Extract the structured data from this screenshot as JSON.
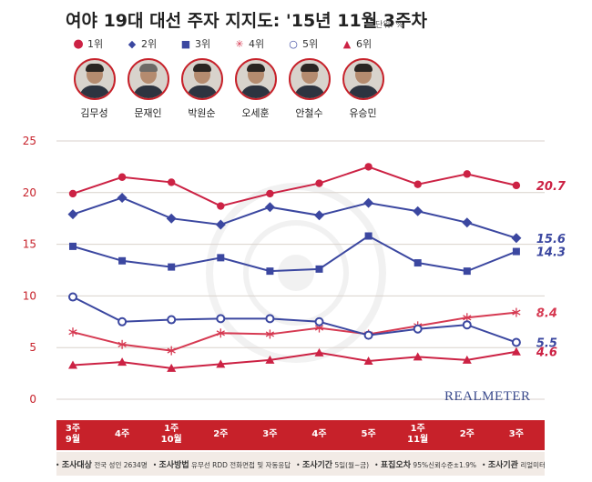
{
  "title": "여야 19대 대선 주자 지지도: '15년 11월 3주차",
  "unit": "단위: %",
  "brand": "REALMETER",
  "legend": [
    {
      "rank": "1위",
      "marker": "circle",
      "color": "#cc2244"
    },
    {
      "rank": "2위",
      "marker": "diamond",
      "color": "#3b47a0"
    },
    {
      "rank": "3위",
      "marker": "square",
      "color": "#3b47a0"
    },
    {
      "rank": "4위",
      "marker": "asterisk",
      "color": "#d63a52"
    },
    {
      "rank": "5위",
      "marker": "open-circle",
      "color": "#3b47a0"
    },
    {
      "rank": "6위",
      "marker": "triangle",
      "color": "#cc2244"
    }
  ],
  "candidates": [
    {
      "name": "김무성"
    },
    {
      "name": "문재인"
    },
    {
      "name": "박원순"
    },
    {
      "name": "오세훈"
    },
    {
      "name": "안철수"
    },
    {
      "name": "유승민"
    }
  ],
  "x_labels": [
    {
      "week": "3주",
      "month": "9월"
    },
    {
      "week": "4주",
      "month": ""
    },
    {
      "week": "1주",
      "month": "10월"
    },
    {
      "week": "2주",
      "month": ""
    },
    {
      "week": "3주",
      "month": ""
    },
    {
      "week": "4주",
      "month": ""
    },
    {
      "week": "5주",
      "month": ""
    },
    {
      "week": "1주",
      "month": "11월"
    },
    {
      "week": "2주",
      "month": ""
    },
    {
      "week": "3주",
      "month": ""
    }
  ],
  "footer": {
    "target_label": "조사대상",
    "target_value": "전국 성인 2634명",
    "method_label": "조사방법",
    "method_value": "유무선 RDD 전화면접 및 자동응답",
    "period_label": "조사기간",
    "period_value": "5일(월~금)",
    "error_label": "표집오차",
    "error_value": "95%신뢰수준±1.9%",
    "org_label": "조사기관",
    "org_value": "리얼미터"
  },
  "chart_data": {
    "type": "line",
    "title": "여야 19대 대선 주자 지지도: '15년 11월 3주차",
    "ylim": [
      0,
      25
    ],
    "yticks": [
      0,
      5,
      10,
      15,
      20,
      25
    ],
    "grid": true,
    "categories": [
      "9월 3주",
      "4주",
      "10월 1주",
      "2주",
      "3주",
      "4주",
      "5주",
      "11월 1주",
      "2주",
      "3주"
    ],
    "series": [
      {
        "name": "1위",
        "marker": "circle",
        "color": "#cc2244",
        "end_label": "20.7",
        "values": [
          19.9,
          21.5,
          21.0,
          18.7,
          19.9,
          20.9,
          22.5,
          20.8,
          21.8,
          20.7
        ]
      },
      {
        "name": "2위",
        "marker": "diamond",
        "color": "#3b47a0",
        "end_label": "15.6",
        "values": [
          17.9,
          19.5,
          17.5,
          16.9,
          18.6,
          17.8,
          19.0,
          18.2,
          17.1,
          15.6
        ]
      },
      {
        "name": "3위",
        "marker": "square",
        "color": "#3b47a0",
        "end_label": "14.3",
        "values": [
          14.8,
          13.4,
          12.8,
          13.7,
          12.4,
          12.6,
          15.8,
          13.2,
          12.4,
          14.3
        ]
      },
      {
        "name": "4위",
        "marker": "asterisk",
        "color": "#d63a52",
        "end_label": "8.4",
        "values": [
          6.5,
          5.3,
          4.7,
          6.4,
          6.3,
          6.9,
          6.3,
          7.1,
          7.9,
          8.4
        ]
      },
      {
        "name": "5위",
        "marker": "open-circle",
        "color": "#3b47a0",
        "end_label": "5.5",
        "values": [
          9.9,
          7.5,
          7.7,
          7.8,
          7.8,
          7.5,
          6.2,
          6.8,
          7.2,
          5.5
        ]
      },
      {
        "name": "6위",
        "marker": "triangle",
        "color": "#cc2244",
        "end_label": "4.6",
        "values": [
          3.3,
          3.6,
          3.0,
          3.4,
          3.8,
          4.5,
          3.7,
          4.1,
          3.8,
          4.6
        ]
      }
    ]
  }
}
